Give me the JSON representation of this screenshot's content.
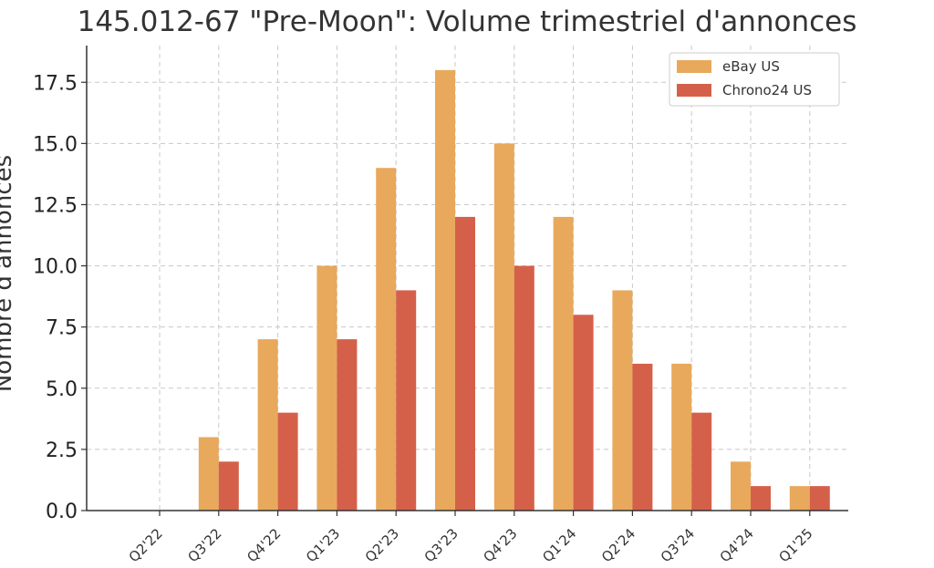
{
  "chart_data": {
    "type": "bar",
    "title": "145.012-67 \"Pre-Moon\": Volume trimestriel d'annonces",
    "xlabel": "",
    "ylabel": "Nombre d'annonces",
    "categories": [
      "Q2'22",
      "Q3'22",
      "Q4'22",
      "Q1'23",
      "Q2'23",
      "Q3'23",
      "Q4'23",
      "Q1'24",
      "Q2'24",
      "Q3'24",
      "Q4'24",
      "Q1'25"
    ],
    "series": [
      {
        "name": "eBay US",
        "color": "#E8A95C",
        "values": [
          0,
          3,
          7,
          10,
          14,
          18,
          15,
          12,
          9,
          6,
          2,
          1
        ]
      },
      {
        "name": "Chrono24 US",
        "color": "#D5604A",
        "values": [
          0,
          2,
          4,
          7,
          9,
          12,
          10,
          8,
          6,
          4,
          1,
          1
        ]
      }
    ],
    "ylim": [
      0,
      19
    ],
    "yticks": [
      "0.0",
      "2.5",
      "5.0",
      "7.5",
      "10.0",
      "12.5",
      "15.0",
      "17.5"
    ],
    "grid": true,
    "legend_position": "top-right"
  }
}
